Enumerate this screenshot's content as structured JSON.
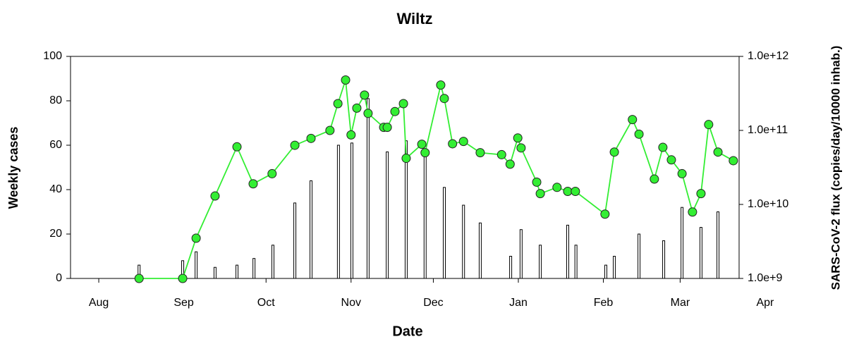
{
  "chart_data": {
    "type": "combo",
    "title": "Wiltz",
    "x_label": "Date",
    "y_label": "Weekly cases",
    "y2_label": "SARS-CoV-2 flux (copies/day/10000 inhab.)",
    "xlim": [
      -10.3,
      233.5
    ],
    "xticks": [
      {
        "value": 0,
        "label": "Aug"
      },
      {
        "value": 31,
        "label": "Sep"
      },
      {
        "value": 61,
        "label": "Oct"
      },
      {
        "value": 92,
        "label": "Nov"
      },
      {
        "value": 122,
        "label": "Dec"
      },
      {
        "value": 153,
        "label": "Jan"
      },
      {
        "value": 184,
        "label": "Feb"
      },
      {
        "value": 212,
        "label": "Mar"
      },
      {
        "value": 243,
        "label": "Apr"
      }
    ],
    "ylim": [
      0,
      100
    ],
    "yticks": [
      0,
      20,
      40,
      60,
      80,
      100
    ],
    "y2lim": [
      1000000000.0,
      1000000000000.0
    ],
    "y2_log": true,
    "y2ticks": [
      {
        "value": 1000000000.0,
        "label": "1.0e+9"
      },
      {
        "value": 10000000000.0,
        "label": "1.0e+10"
      },
      {
        "value": 100000000000.0,
        "label": "1.0e+11"
      },
      {
        "value": 1000000000000.0,
        "label": "1.0e+12"
      }
    ],
    "series": [
      {
        "type": "bar",
        "color": "#ffffff",
        "x": [
          14.7,
          30.6,
          35.5,
          42.4,
          50.4,
          56.6,
          63.5,
          71.5,
          77.4,
          87.4,
          92.3,
          98.2,
          105.2,
          112.1,
          119,
          126,
          133,
          139.1,
          150.2,
          154,
          161,
          171,
          174,
          184.9,
          188,
          197,
          206,
          212.7,
          219.6,
          225.8
        ],
        "values": [
          6,
          8,
          12,
          5,
          6,
          9,
          15,
          34,
          44,
          60,
          61,
          81,
          57,
          62,
          58,
          41,
          33,
          25,
          10,
          22,
          15,
          24,
          15,
          6,
          10,
          20,
          17,
          32,
          23,
          30
        ]
      },
      {
        "type": "line",
        "axis": "y2",
        "color": "#33ee33",
        "x": [
          14.7,
          30.6,
          35.5,
          42.4,
          50.4,
          56.3,
          63.2,
          71.5,
          77.4,
          84.3,
          87.2,
          90,
          92,
          94.1,
          96.9,
          98.2,
          103.9,
          105.2,
          108,
          111.1,
          112.1,
          117.8,
          119,
          124.7,
          126,
          129,
          133,
          139.1,
          146.9,
          150,
          152.8,
          154,
          159.7,
          161,
          167.1,
          171,
          173.8,
          184.6,
          188,
          194.6,
          197,
          202.6,
          205.7,
          208.8,
          212.7,
          216.5,
          219.6,
          222.4,
          225.8,
          231.4
        ],
        "values": [
          1000000000.0,
          1000000000.0,
          3500000000.0,
          13000000000.0,
          60000000000.0,
          19000000000.0,
          26000000000.0,
          63000000000.0,
          78000000000.0,
          100000000000.0,
          230000000000.0,
          480000000000.0,
          87000000000.0,
          200000000000.0,
          300000000000.0,
          170000000000.0,
          110000000000.0,
          110000000000.0,
          180000000000.0,
          230000000000.0,
          42000000000.0,
          65000000000.0,
          50000000000.0,
          410000000000.0,
          270000000000.0,
          66000000000.0,
          71000000000.0,
          50000000000.0,
          47000000000.0,
          35000000000.0,
          79000000000.0,
          58000000000.0,
          20000000000.0,
          14000000000.0,
          17000000000.0,
          15000000000.0,
          15000000000.0,
          7400000000.0,
          51000000000.0,
          140000000000.0,
          89000000000.0,
          22000000000.0,
          59000000000.0,
          40000000000.0,
          26000000000.0,
          7900000000.0,
          14000000000.0,
          120000000000.0,
          51000000000.0,
          39000000000.0
        ]
      }
    ]
  }
}
